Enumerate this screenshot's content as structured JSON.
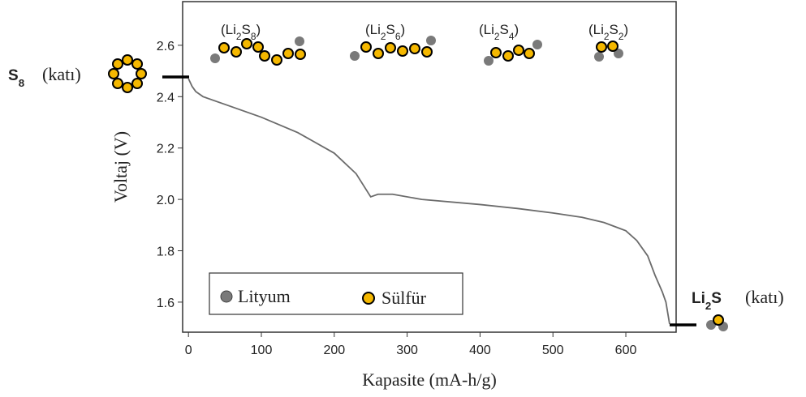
{
  "chart_data": {
    "type": "line",
    "xlabel": "Kapasite (mA-h/g)",
    "ylabel": "Voltaj (V)",
    "xlim": [
      -8,
      669
    ],
    "ylim": [
      1.483,
      2.77
    ],
    "xticks": [
      0,
      100,
      200,
      300,
      400,
      500,
      600
    ],
    "yticks": [
      1.6,
      1.8,
      {
        "value": 2,
        "label": "2.0"
      },
      2.2,
      2.4,
      2.6
    ],
    "grid": false,
    "series": [
      {
        "color": "#6b6b6b",
        "x": [
          0,
          5,
          10,
          20,
          50,
          100,
          150,
          200,
          230,
          250,
          260,
          280,
          320,
          400,
          450,
          500,
          540,
          570,
          600,
          615,
          630,
          640,
          650,
          655,
          660
        ],
        "values": [
          2.47,
          2.44,
          2.42,
          2.4,
          2.37,
          2.32,
          2.26,
          2.18,
          2.1,
          2.01,
          2.02,
          2.02,
          2.0,
          1.98,
          1.965,
          1.947,
          1.93,
          1.91,
          1.878,
          1.84,
          1.78,
          1.705,
          1.64,
          1.6,
          1.515
        ]
      }
    ],
    "legend": [
      {
        "label": "Lityum",
        "color": "#7a7a7a"
      },
      {
        "label": "Sülfür",
        "color": "#f5b800"
      }
    ],
    "start_state": {
      "formula": [
        "S",
        "8"
      ],
      "state": "(katı)"
    },
    "end_state": {
      "formula": [
        "Li",
        "2",
        "S"
      ],
      "state": "(katı)"
    },
    "species": [
      [
        "(Li",
        "2",
        "S",
        "8",
        ")"
      ],
      [
        "(Li",
        "2",
        "S",
        "6",
        ")"
      ],
      [
        "(Li",
        "2",
        "S",
        "4",
        ")"
      ],
      [
        "(Li",
        "2",
        "S",
        "2",
        ")"
      ]
    ]
  }
}
